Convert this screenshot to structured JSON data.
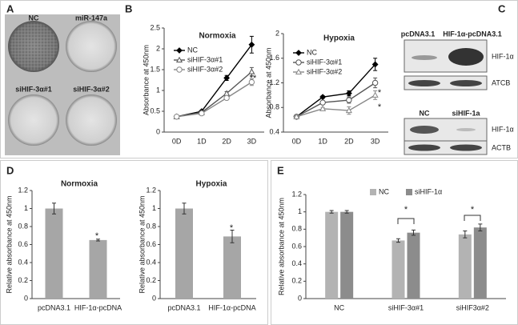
{
  "panel_labels": [
    "A",
    "B",
    "C",
    "D",
    "E"
  ],
  "colony_assay": {
    "wells": [
      "NC",
      "miR-147a",
      "siHIF-3α#1",
      "siHIF-3α#2"
    ]
  },
  "western_blot": {
    "blots": [
      {
        "lanes": [
          "pcDNA3.1",
          "HIF-1α-pcDNA3.1"
        ],
        "bands": [
          "HIF-1α",
          "ATCB"
        ]
      },
      {
        "lanes": [
          "NC",
          "siHIF-1a"
        ],
        "bands": [
          "HIF-1α",
          "ACTB"
        ]
      }
    ]
  },
  "chart_data": [
    {
      "type": "line",
      "title": "Normoxia",
      "ylabel": "Absorbance at 450nm",
      "legend": "upper left",
      "categories": [
        "0D",
        "1D",
        "2D",
        "3D"
      ],
      "ylim": [
        0,
        2.5
      ],
      "yticks": [
        0,
        0.5,
        1,
        1.5,
        2,
        2.5
      ],
      "series": [
        {
          "name": "NC",
          "color": "#000000",
          "marker": "diamond",
          "values": [
            0.37,
            0.5,
            1.3,
            2.1
          ],
          "errors": [
            0.01,
            0.02,
            0.06,
            0.2
          ]
        },
        {
          "name": "siHIF-3α#1",
          "color": "#555555",
          "marker": "triangle",
          "values": [
            0.37,
            0.47,
            0.93,
            1.45
          ],
          "errors": [
            0.01,
            0.02,
            0.04,
            0.1
          ]
        },
        {
          "name": "siHIF-3α#2",
          "color": "#888888",
          "marker": "circle",
          "values": [
            0.37,
            0.45,
            0.82,
            1.2
          ],
          "errors": [
            0.01,
            0.02,
            0.04,
            0.08
          ]
        }
      ],
      "annotations": [
        "**"
      ]
    },
    {
      "type": "line",
      "title": "Hypoxia",
      "ylabel": "Absorbance at 450nm",
      "legend": "upper left",
      "categories": [
        "0D",
        "1D",
        "2D",
        "3D"
      ],
      "ylim": [
        0.4,
        2
      ],
      "yticks": [
        0.4,
        0.8,
        1.2,
        1.6,
        2
      ],
      "series": [
        {
          "name": "NC",
          "color": "#000000",
          "marker": "diamond",
          "values": [
            0.65,
            0.97,
            1.03,
            1.5
          ],
          "errors": [
            0.02,
            0.02,
            0.04,
            0.1
          ]
        },
        {
          "name": "siHIF-3α#1",
          "color": "#555555",
          "marker": "circle",
          "values": [
            0.65,
            0.88,
            0.92,
            1.2
          ],
          "errors": [
            0.02,
            0.02,
            0.05,
            0.08
          ]
        },
        {
          "name": "siHIF-3α#2",
          "color": "#888888",
          "marker": "triangle",
          "values": [
            0.65,
            0.78,
            0.75,
            1.0
          ],
          "errors": [
            0.02,
            0.02,
            0.06,
            0.07
          ]
        }
      ],
      "annotations": [
        "*",
        "*"
      ]
    },
    {
      "type": "bar",
      "title": "Normoxia",
      "ylabel": "Relative absorbance at 450nm",
      "categories": [
        "pcDNA3.1",
        "HIF-1α-pcDNA"
      ],
      "values": [
        1,
        0.65
      ],
      "errors": [
        0.06,
        0.01
      ],
      "color": "#a6a6a6",
      "ylim": [
        0,
        1.2
      ],
      "yticks": [
        0,
        0.2,
        0.4,
        0.6,
        0.8,
        1,
        1.2
      ],
      "annotations": [
        "*"
      ]
    },
    {
      "type": "bar",
      "title": "Hypoxia",
      "ylabel": "Relative absorbance at 450nm",
      "categories": [
        "pcDNA3.1",
        "HIF-1α-pcDNA"
      ],
      "values": [
        1,
        0.69
      ],
      "errors": [
        0.06,
        0.07
      ],
      "color": "#a6a6a6",
      "ylim": [
        0,
        1.2
      ],
      "yticks": [
        0,
        0.2,
        0.4,
        0.6,
        0.8,
        1,
        1.2
      ],
      "annotations": [
        "*"
      ]
    },
    {
      "type": "bar",
      "ylabel": "Relative absorbance at 450nm",
      "legend": "upper center",
      "categories": [
        "NC",
        "siHIF-3α#1",
        "siHIF3α#2"
      ],
      "series": [
        {
          "name": "NC",
          "color": "#b3b3b3",
          "values": [
            1,
            0.67,
            0.74
          ],
          "errors": [
            0.015,
            0.02,
            0.04
          ]
        },
        {
          "name": "siHIF-1α",
          "color": "#8c8c8c",
          "values": [
            1,
            0.76,
            0.82
          ],
          "errors": [
            0.015,
            0.03,
            0.04
          ]
        }
      ],
      "ylim": [
        0,
        1.2
      ],
      "yticks": [
        0,
        0.2,
        0.4,
        0.6,
        0.8,
        1,
        1.2
      ],
      "annotations": [
        "*",
        "*"
      ]
    }
  ]
}
